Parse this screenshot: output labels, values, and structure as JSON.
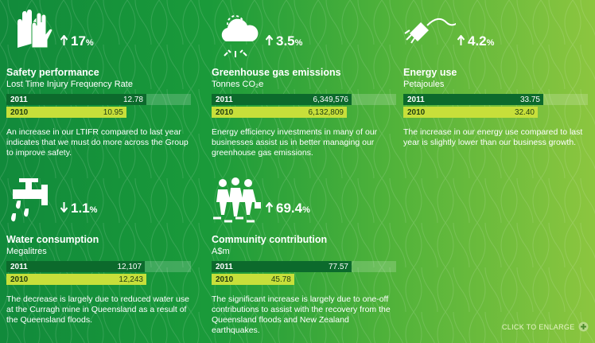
{
  "panels": [
    {
      "change": {
        "value": "17",
        "unit": "%",
        "direction": "up"
      },
      "title": "Safety performance",
      "subtitle": "Lost Time Injury Frequency Rate",
      "rows": [
        {
          "year": "2011",
          "value": "12.78"
        },
        {
          "year": "2010",
          "value": "10.95"
        }
      ],
      "description": "An increase in our LTIFR compared to last year indicates that we must do more across the Group to improve safety."
    },
    {
      "change": {
        "value": "3.5",
        "unit": "%",
        "direction": "up"
      },
      "title": "Greenhouse gas emissions",
      "subtitle": "Tonnes CO₂e",
      "rows": [
        {
          "year": "2011",
          "value": "6,349,576"
        },
        {
          "year": "2010",
          "value": "6,132,809"
        }
      ],
      "description": "Energy efficiency investments in many of our businesses assist us in better managing our greenhouse gas emissions."
    },
    {
      "change": {
        "value": "4.2",
        "unit": "%",
        "direction": "up"
      },
      "title": "Energy use",
      "subtitle": "Petajoules",
      "rows": [
        {
          "year": "2011",
          "value": "33.75"
        },
        {
          "year": "2010",
          "value": "32.40"
        }
      ],
      "description": "The increase in our energy use compared to last year is slightly lower than our business growth."
    },
    {
      "change": {
        "value": "1.1",
        "unit": "%",
        "direction": "down"
      },
      "title": "Water consumption",
      "subtitle": "Megalitres",
      "rows": [
        {
          "year": "2011",
          "value": "12,107"
        },
        {
          "year": "2010",
          "value": "12,243"
        }
      ],
      "description": "The decrease is largely due to reduced water use at the Curragh mine in Queensland as a result of the Queensland floods."
    },
    {
      "change": {
        "value": "69.4",
        "unit": "%",
        "direction": "up"
      },
      "title": "Community contribution",
      "subtitle": "A$m",
      "rows": [
        {
          "year": "2011",
          "value": "77.57"
        },
        {
          "year": "2010",
          "value": "45.78"
        }
      ],
      "description": "The significant increase is largely due to one-off contributions to assist with the recovery from the Queensland floods and New Zealand earthquakes."
    }
  ],
  "footer": "CLICK TO ENLARGE"
}
